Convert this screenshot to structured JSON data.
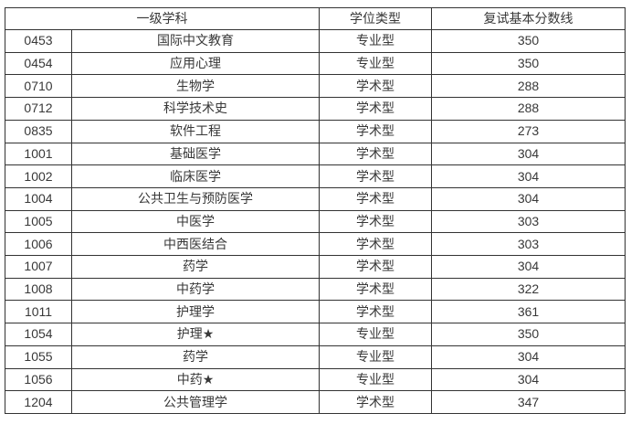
{
  "table": {
    "title_semantic": "graduate-retest-score-lines",
    "colors": {
      "border": "#333333",
      "text": "#383838",
      "background": "#ffffff"
    },
    "headers": {
      "discipline": "一级学科",
      "degree_type": "学位类型",
      "score_line": "复试基本分数线"
    },
    "rows": [
      {
        "code": "0453",
        "name": "国际中文教育",
        "type": "专业型",
        "score": "350"
      },
      {
        "code": "0454",
        "name": "应用心理",
        "type": "专业型",
        "score": "350"
      },
      {
        "code": "0710",
        "name": "生物学",
        "type": "学术型",
        "score": "288"
      },
      {
        "code": "0712",
        "name": "科学技术史",
        "type": "学术型",
        "score": "288"
      },
      {
        "code": "0835",
        "name": "软件工程",
        "type": "学术型",
        "score": "273"
      },
      {
        "code": "1001",
        "name": "基础医学",
        "type": "学术型",
        "score": "304"
      },
      {
        "code": "1002",
        "name": "临床医学",
        "type": "学术型",
        "score": "304"
      },
      {
        "code": "1004",
        "name": "公共卫生与预防医学",
        "type": "学术型",
        "score": "304"
      },
      {
        "code": "1005",
        "name": "中医学",
        "type": "学术型",
        "score": "303"
      },
      {
        "code": "1006",
        "name": "中西医结合",
        "type": "学术型",
        "score": "303"
      },
      {
        "code": "1007",
        "name": "药学",
        "type": "学术型",
        "score": "304"
      },
      {
        "code": "1008",
        "name": "中药学",
        "type": "学术型",
        "score": "322"
      },
      {
        "code": "1011",
        "name": "护理学",
        "type": "学术型",
        "score": "361"
      },
      {
        "code": "1054",
        "name": "护理★",
        "type": "专业型",
        "score": "350"
      },
      {
        "code": "1055",
        "name": "药学",
        "type": "专业型",
        "score": "304"
      },
      {
        "code": "1056",
        "name": "中药★",
        "type": "专业型",
        "score": "304"
      },
      {
        "code": "1204",
        "name": "公共管理学",
        "type": "学术型",
        "score": "347"
      }
    ]
  }
}
